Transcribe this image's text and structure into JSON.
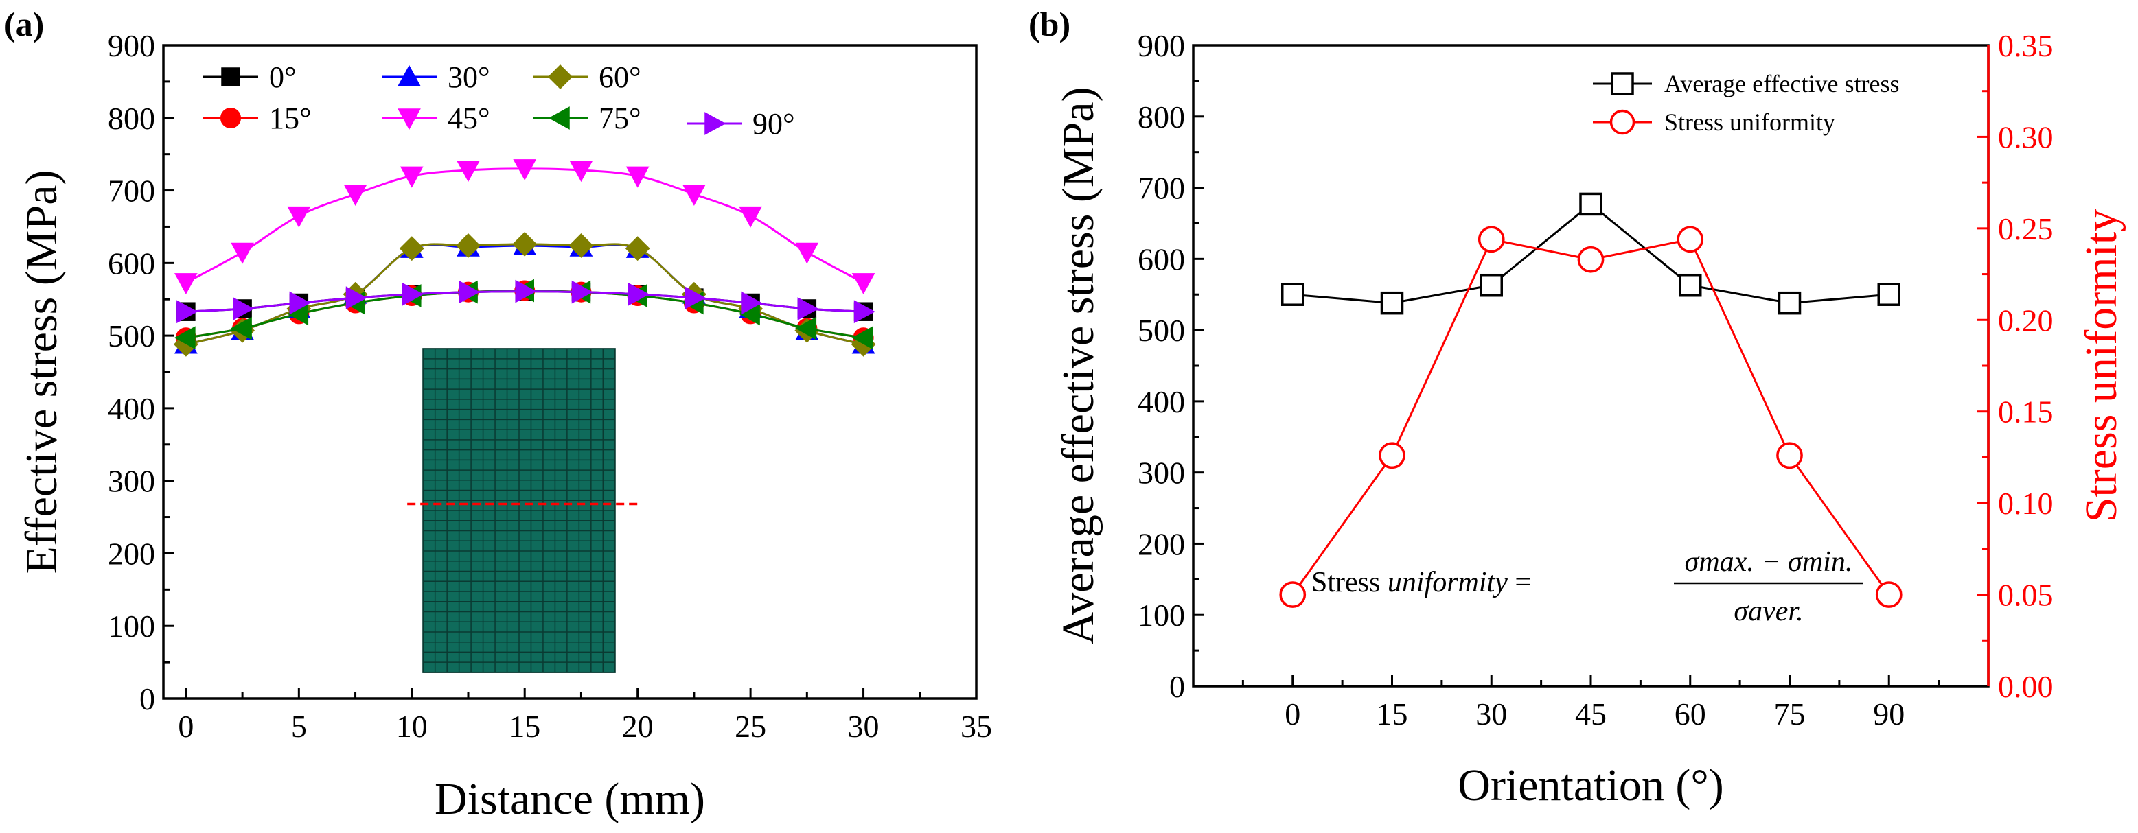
{
  "chart_data": [
    {
      "panel": "(a)",
      "type": "line",
      "xlabel": "Distance (mm)",
      "ylabel": "Effective stress (MPa)",
      "xlim": [
        -1,
        35
      ],
      "ylim": [
        0,
        900
      ],
      "xticks": [
        0,
        5,
        10,
        15,
        20,
        25,
        30,
        35
      ],
      "yticks": [
        0,
        100,
        200,
        300,
        400,
        500,
        600,
        700,
        800,
        900
      ],
      "x": [
        0,
        2.5,
        5,
        7.5,
        10,
        12.5,
        15,
        17.5,
        20,
        22.5,
        25,
        27.5,
        30
      ],
      "series": [
        {
          "name": "0°",
          "color": "#000000",
          "marker": "square",
          "values": [
            533,
            537,
            545,
            552,
            557,
            560,
            561,
            560,
            557,
            552,
            545,
            537,
            533
          ]
        },
        {
          "name": "15°",
          "color": "#ff0000",
          "marker": "circle",
          "values": [
            497,
            510,
            530,
            545,
            555,
            560,
            562,
            560,
            555,
            545,
            530,
            510,
            497
          ]
        },
        {
          "name": "30°",
          "color": "#0000ff",
          "marker": "triangle-up",
          "values": [
            488,
            507,
            537,
            557,
            620,
            622,
            624,
            622,
            620,
            557,
            537,
            507,
            488
          ]
        },
        {
          "name": "45°",
          "color": "#ff00ff",
          "marker": "triangle-down",
          "values": [
            573,
            615,
            665,
            695,
            720,
            728,
            730,
            728,
            720,
            695,
            665,
            615,
            573
          ]
        },
        {
          "name": "60°",
          "color": "#808000",
          "marker": "diamond",
          "values": [
            488,
            507,
            537,
            557,
            620,
            624,
            626,
            624,
            620,
            557,
            537,
            507,
            488
          ]
        },
        {
          "name": "75°",
          "color": "#008000",
          "marker": "triangle-left",
          "values": [
            497,
            510,
            530,
            545,
            555,
            560,
            562,
            560,
            555,
            545,
            530,
            510,
            497
          ]
        },
        {
          "name": "90°",
          "color": "#9900ff",
          "marker": "triangle-right",
          "values": [
            533,
            537,
            545,
            552,
            557,
            560,
            561,
            560,
            557,
            552,
            545,
            537,
            533
          ]
        }
      ]
    },
    {
      "panel": "(b)",
      "type": "line",
      "xlabel": "Orientation (°)",
      "ylabel": "Average effective stress (MPa)",
      "ylabel_right": "Stress uniformity",
      "categories": [
        0,
        15,
        30,
        45,
        60,
        75,
        90
      ],
      "xlim": [
        -15,
        105
      ],
      "ylim": [
        0,
        900
      ],
      "ylim_right": [
        0,
        0.35
      ],
      "yticks": [
        0,
        100,
        200,
        300,
        400,
        500,
        600,
        700,
        800,
        900
      ],
      "yticks_right": [
        "0.00",
        "0.05",
        "0.10",
        "0.15",
        "0.20",
        "0.25",
        "0.30",
        "0.35"
      ],
      "series": [
        {
          "name": "Average effective stress",
          "color": "#000000",
          "marker": "open-square",
          "axis": "left",
          "values": [
            550,
            538,
            563,
            677,
            563,
            538,
            550
          ]
        },
        {
          "name": "Stress uniformity",
          "color": "#ff0000",
          "marker": "open-circle",
          "axis": "right",
          "values": [
            0.05,
            0.126,
            0.244,
            0.233,
            0.244,
            0.126,
            0.05
          ]
        }
      ],
      "annotation": {
        "lhs_plain": "Stress ",
        "lhs_italic": "uniformity",
        "equals": " = ",
        "numerator": "σmax. − σmin.",
        "denominator": "σaver."
      }
    }
  ]
}
